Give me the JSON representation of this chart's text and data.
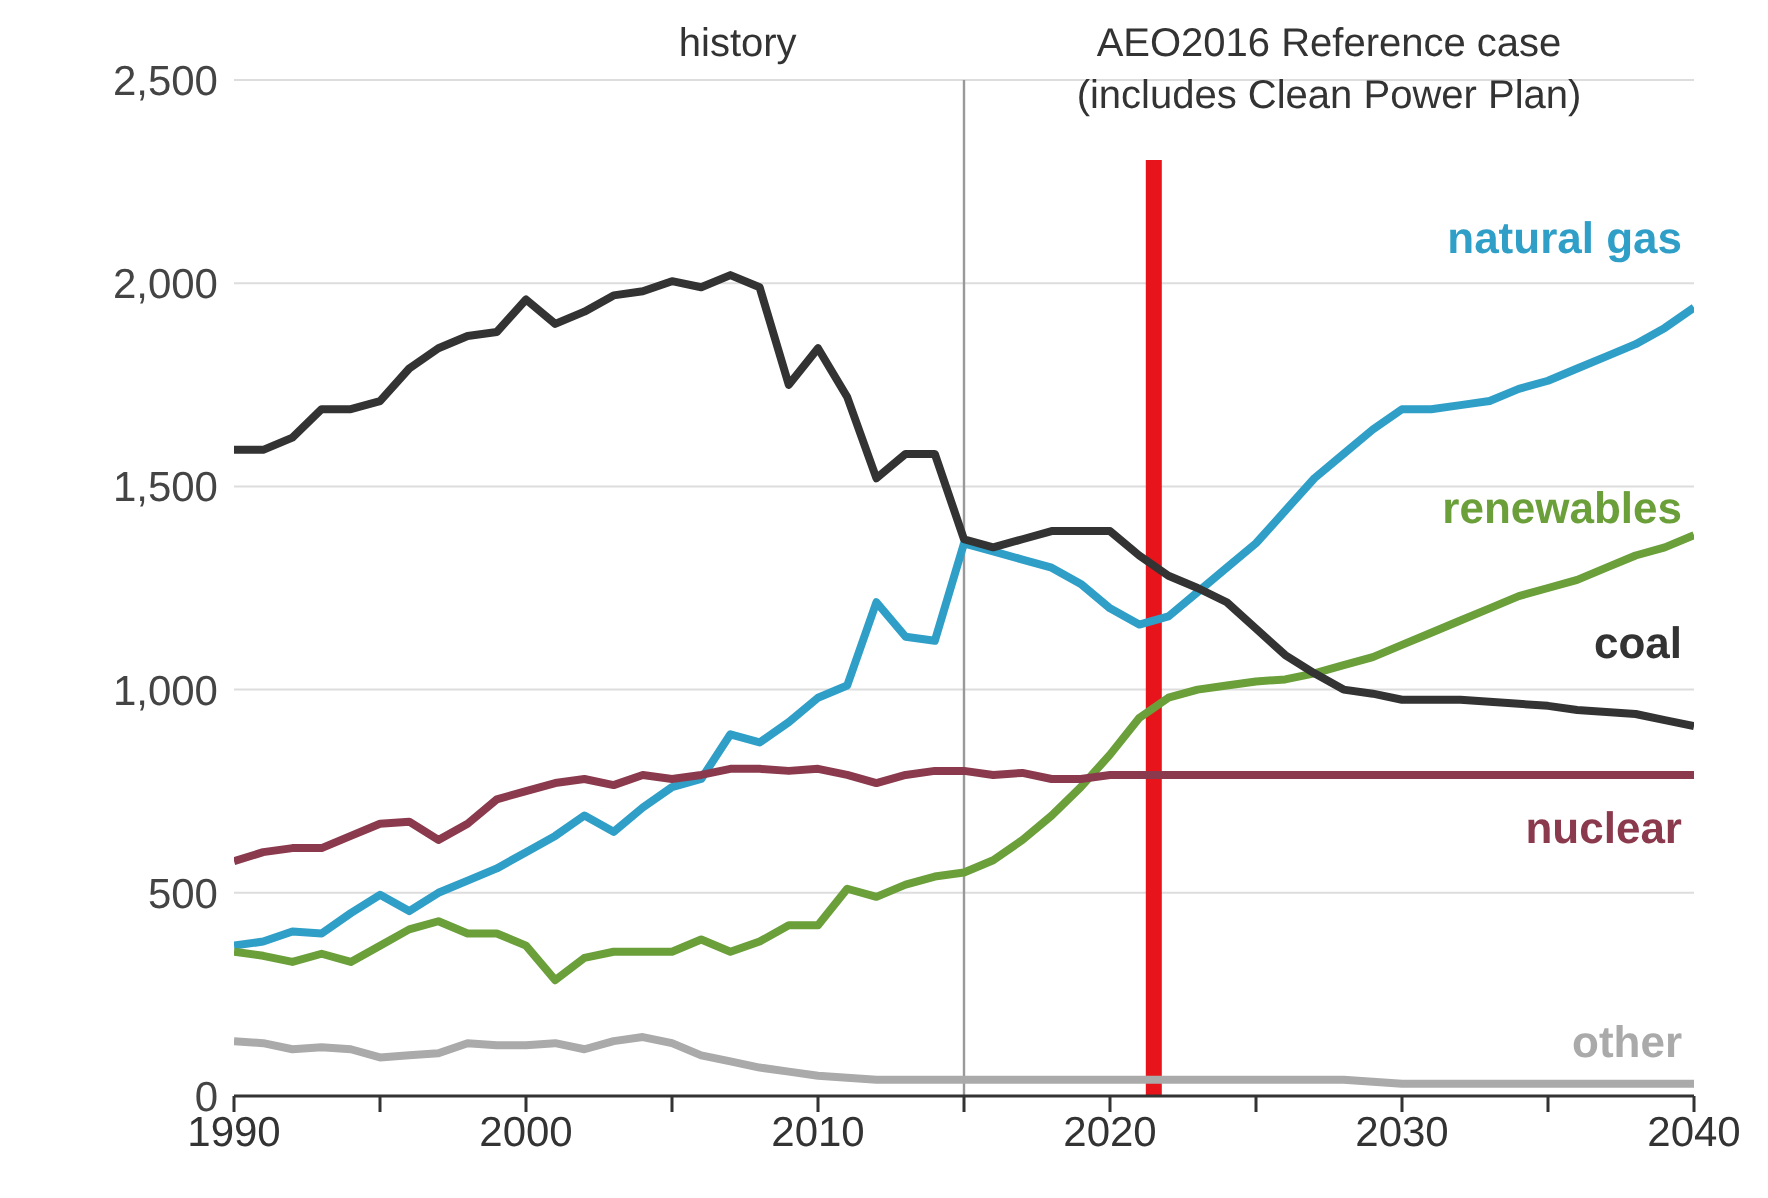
{
  "chart_data": {
    "type": "line",
    "x": [
      1990,
      1991,
      1992,
      1993,
      1994,
      1995,
      1996,
      1997,
      1998,
      1999,
      2000,
      2001,
      2002,
      2003,
      2004,
      2005,
      2006,
      2007,
      2008,
      2009,
      2010,
      2011,
      2012,
      2013,
      2014,
      2015,
      2016,
      2017,
      2018,
      2019,
      2020,
      2021,
      2022,
      2023,
      2024,
      2025,
      2026,
      2027,
      2028,
      2029,
      2030,
      2031,
      2032,
      2033,
      2034,
      2035,
      2036,
      2037,
      2038,
      2039,
      2040
    ],
    "series": [
      {
        "name": "natural gas",
        "color": "#2f9fc8",
        "values": [
          370,
          380,
          405,
          400,
          450,
          495,
          455,
          500,
          530,
          560,
          600,
          640,
          690,
          650,
          710,
          760,
          780,
          890,
          870,
          920,
          980,
          1010,
          1215,
          1130,
          1120,
          1360,
          1340,
          1320,
          1300,
          1260,
          1200,
          1160,
          1180,
          1240,
          1300,
          1360,
          1440,
          1520,
          1580,
          1640,
          1690,
          1690,
          1700,
          1710,
          1740,
          1760,
          1790,
          1820,
          1850,
          1890,
          1940
        ]
      },
      {
        "name": "renewables",
        "color": "#6a9f3a",
        "values": [
          355,
          345,
          330,
          350,
          330,
          370,
          410,
          430,
          400,
          400,
          370,
          285,
          340,
          355,
          355,
          355,
          385,
          355,
          380,
          420,
          420,
          510,
          490,
          520,
          540,
          550,
          580,
          630,
          690,
          760,
          840,
          930,
          980,
          1000,
          1010,
          1020,
          1025,
          1040,
          1060,
          1080,
          1110,
          1140,
          1170,
          1200,
          1230,
          1250,
          1270,
          1300,
          1330,
          1350,
          1380
        ]
      },
      {
        "name": "coal",
        "color": "#333333",
        "values": [
          1590,
          1590,
          1620,
          1690,
          1690,
          1710,
          1790,
          1840,
          1870,
          1880,
          1960,
          1900,
          1930,
          1970,
          1980,
          2005,
          1990,
          2020,
          1990,
          1750,
          1840,
          1720,
          1520,
          1580,
          1580,
          1370,
          1350,
          1370,
          1390,
          1390,
          1390,
          1330,
          1280,
          1250,
          1215,
          1150,
          1085,
          1040,
          1000,
          990,
          975,
          975,
          975,
          970,
          965,
          960,
          950,
          945,
          940,
          925,
          910
        ]
      },
      {
        "name": "nuclear",
        "color": "#8b3a4e",
        "values": [
          578,
          600,
          610,
          610,
          640,
          670,
          675,
          630,
          670,
          730,
          750,
          770,
          780,
          765,
          790,
          780,
          790,
          805,
          805,
          800,
          805,
          790,
          770,
          790,
          800,
          800,
          790,
          795,
          780,
          780,
          790,
          790,
          790,
          790,
          790,
          790,
          790,
          790,
          790,
          790,
          790,
          790,
          790,
          790,
          790,
          790,
          790,
          790,
          790,
          790,
          790
        ]
      },
      {
        "name": "other",
        "color": "#aaaaaa",
        "values": [
          135,
          130,
          115,
          120,
          115,
          95,
          100,
          105,
          130,
          125,
          125,
          130,
          115,
          135,
          145,
          130,
          100,
          85,
          70,
          60,
          50,
          45,
          40,
          40,
          40,
          40,
          40,
          40,
          40,
          40,
          40,
          40,
          40,
          40,
          40,
          40,
          40,
          40,
          40,
          35,
          30,
          30,
          30,
          30,
          30,
          30,
          30,
          30,
          30,
          30,
          30
        ]
      }
    ],
    "xlim": [
      1990,
      2040
    ],
    "xticks": [
      1990,
      {
        "value": 1995,
        "label": null
      },
      2000,
      {
        "value": 2005,
        "label": null
      },
      2010,
      {
        "value": 2015,
        "label": null
      },
      2020,
      {
        "value": 2025,
        "label": null
      },
      2030,
      {
        "value": 2035,
        "label": null
      },
      2040
    ],
    "ylim": [
      0,
      2500
    ],
    "yticks": [
      0,
      500,
      {
        "value": 1000,
        "label": "1,000"
      },
      {
        "value": 1500,
        "label": "1,500"
      },
      {
        "value": 2000,
        "label": "2,000"
      },
      {
        "value": 2500,
        "label": "2,500"
      }
    ],
    "grid": "y",
    "legend": false,
    "marker": "none",
    "line_style": "solid",
    "ref_lines": [
      {
        "axis": "x",
        "value": 2015,
        "color": "#999999"
      },
      {
        "axis": "x",
        "value": 2021.5,
        "color": "#e8141c"
      }
    ],
    "annotations": [
      "history",
      "AEO2016 Reference case",
      "(includes Clean Power Plan)"
    ]
  }
}
